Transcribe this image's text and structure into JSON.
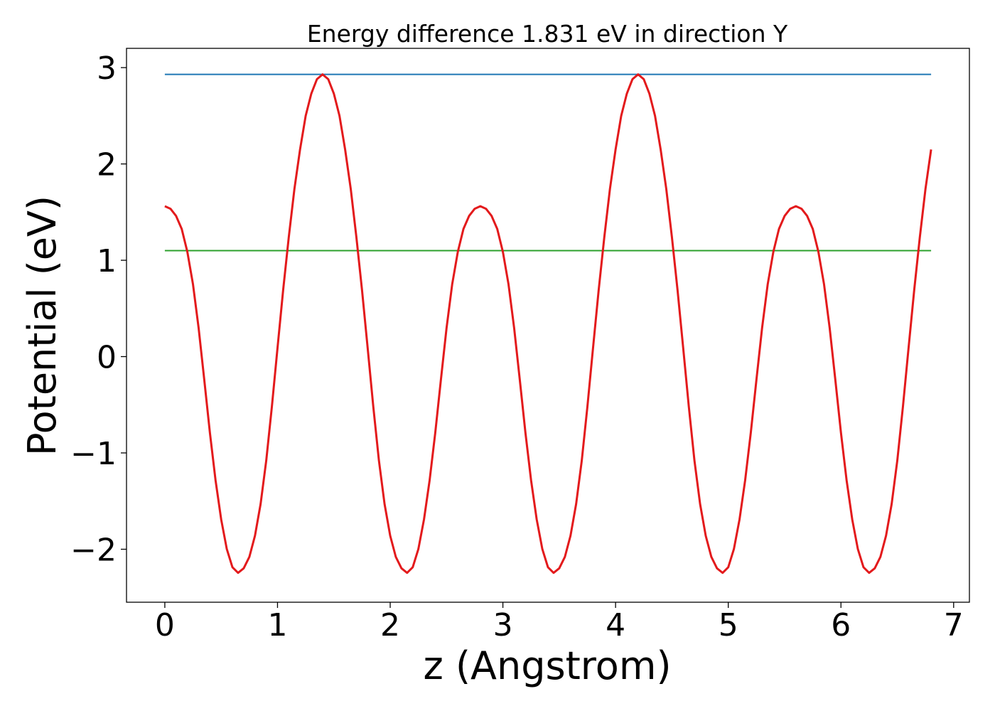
{
  "chart_data": {
    "type": "line",
    "title": "Energy difference 1.831 eV in direction Y",
    "xlabel": "z (Angstrom)",
    "ylabel": "Potential (eV)",
    "xlim": [
      -0.34,
      7.14
    ],
    "ylim": [
      -2.55,
      3.2
    ],
    "x_ticks": [
      0,
      1,
      2,
      3,
      4,
      5,
      6,
      7
    ],
    "x_tick_labels": [
      "0",
      "1",
      "2",
      "3",
      "4",
      "5",
      "6",
      "7"
    ],
    "y_ticks": [
      -2,
      -1,
      0,
      1,
      2,
      3
    ],
    "y_tick_labels": [
      "−2",
      "−1",
      "0",
      "1",
      "2",
      "3"
    ],
    "grid": false,
    "series": [
      {
        "color": "#1f77b4",
        "x": [
          0.0,
          6.8
        ],
        "y": [
          2.93,
          2.93
        ]
      },
      {
        "color": "#2ca02c",
        "x": [
          0.0,
          6.8
        ],
        "y": [
          1.1,
          1.1
        ]
      },
      {
        "color": "#e31a1c",
        "x": [
          0.0,
          0.05,
          0.1,
          0.15,
          0.2,
          0.25,
          0.3,
          0.35,
          0.4,
          0.45,
          0.5,
          0.55,
          0.6,
          0.65,
          0.7,
          0.75,
          0.8,
          0.85,
          0.9,
          0.95,
          1.0,
          1.05,
          1.1,
          1.15,
          1.2,
          1.25,
          1.3,
          1.35,
          1.4,
          1.45,
          1.5,
          1.55,
          1.6,
          1.65,
          1.7,
          1.75,
          1.8,
          1.85,
          1.9,
          1.95,
          2.0,
          2.05,
          2.1,
          2.15,
          2.2,
          2.25,
          2.3,
          2.35,
          2.4,
          2.45,
          2.5,
          2.55,
          2.6,
          2.65,
          2.7,
          2.75,
          2.8,
          2.85,
          2.9,
          2.95,
          3.0,
          3.05,
          3.1,
          3.15,
          3.2,
          3.25,
          3.3,
          3.35,
          3.4,
          3.45,
          3.5,
          3.55,
          3.6,
          3.65,
          3.7,
          3.75,
          3.8,
          3.85,
          3.9,
          3.95,
          4.0,
          4.05,
          4.1,
          4.15,
          4.2,
          4.25,
          4.3,
          4.35,
          4.4,
          4.45,
          4.5,
          4.55,
          4.6,
          4.65,
          4.7,
          4.75,
          4.8,
          4.85,
          4.9,
          4.95,
          5.0,
          5.05,
          5.1,
          5.15,
          5.2,
          5.25,
          5.3,
          5.35,
          5.4,
          5.45,
          5.5,
          5.55,
          5.6,
          5.65,
          5.7,
          5.75,
          5.8,
          5.85,
          5.9,
          5.95,
          6.0,
          6.05,
          6.1,
          6.15,
          6.2,
          6.25,
          6.3,
          6.35,
          6.4,
          6.45,
          6.5,
          6.55,
          6.6,
          6.65,
          6.7,
          6.75,
          6.8
        ],
        "y": [
          1.561,
          1.535,
          1.46,
          1.325,
          1.087,
          0.75,
          0.296,
          -0.24,
          -0.79,
          -1.283,
          -1.69,
          -1.998,
          -2.187,
          -2.245,
          -2.198,
          -2.08,
          -1.86,
          -1.53,
          -1.08,
          -0.52,
          0.09,
          0.69,
          1.24,
          1.74,
          2.15,
          2.5,
          2.73,
          2.88,
          2.93,
          2.88,
          2.73,
          2.5,
          2.15,
          1.74,
          1.24,
          0.69,
          0.09,
          -0.52,
          -1.08,
          -1.53,
          -1.86,
          -2.08,
          -2.198,
          -2.245,
          -2.187,
          -1.998,
          -1.69,
          -1.283,
          -0.79,
          -0.24,
          0.296,
          0.75,
          1.087,
          1.325,
          1.46,
          1.535,
          1.561,
          1.535,
          1.46,
          1.325,
          1.087,
          0.75,
          0.296,
          -0.24,
          -0.79,
          -1.283,
          -1.69,
          -1.998,
          -2.187,
          -2.245,
          -2.198,
          -2.08,
          -1.86,
          -1.53,
          -1.08,
          -0.52,
          0.09,
          0.69,
          1.24,
          1.74,
          2.15,
          2.5,
          2.73,
          2.88,
          2.93,
          2.88,
          2.73,
          2.5,
          2.15,
          1.74,
          1.24,
          0.69,
          0.09,
          -0.52,
          -1.08,
          -1.53,
          -1.86,
          -2.08,
          -2.198,
          -2.245,
          -2.187,
          -1.998,
          -1.69,
          -1.283,
          -0.79,
          -0.24,
          0.296,
          0.75,
          1.087,
          1.325,
          1.46,
          1.535,
          1.561,
          1.535,
          1.46,
          1.325,
          1.087,
          0.75,
          0.296,
          -0.24,
          -0.79,
          -1.283,
          -1.69,
          -1.998,
          -2.187,
          -2.245,
          -2.198,
          -2.08,
          -1.86,
          -1.53,
          -1.08,
          -0.52,
          0.09,
          0.69,
          1.24,
          1.74,
          2.15
        ]
      }
    ]
  }
}
